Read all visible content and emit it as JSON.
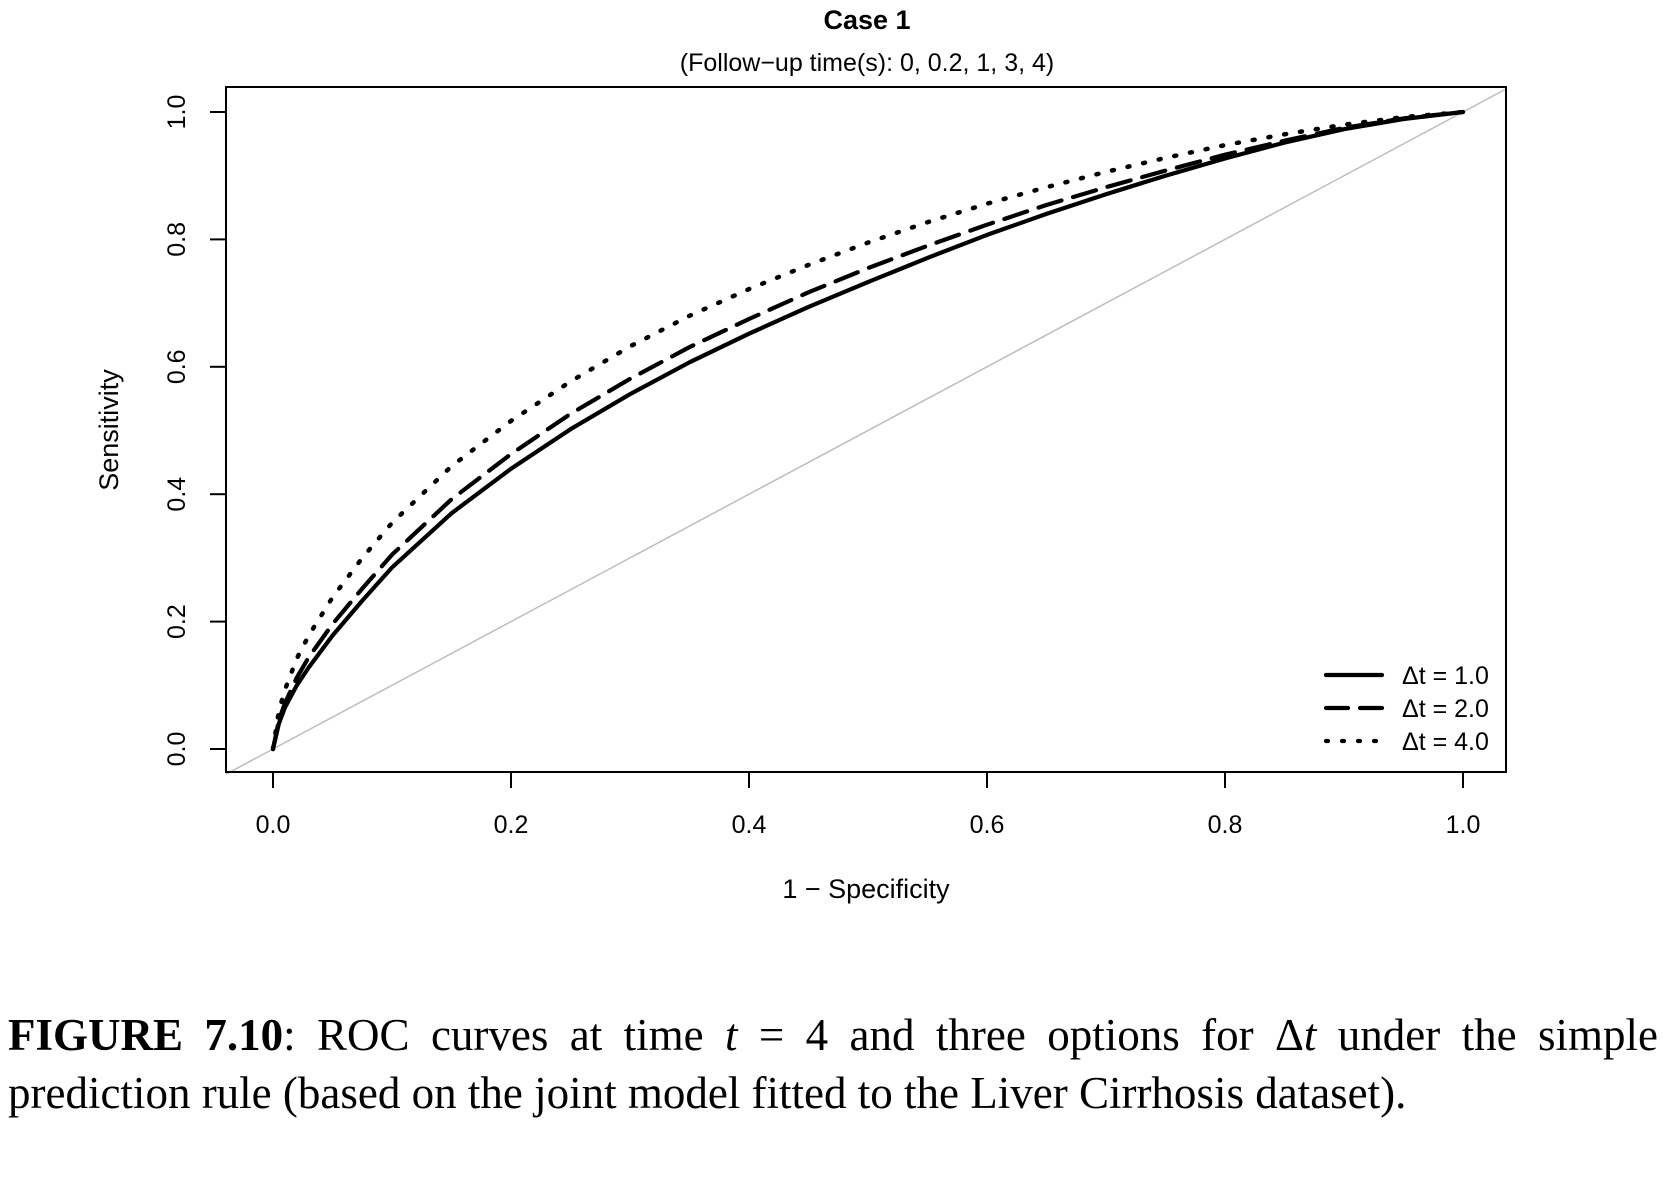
{
  "chart_data": {
    "type": "line",
    "title": "Case 1",
    "subtitle": "(Follow−up time(s): 0, 0.2, 1, 3, 4)",
    "xlabel": "1 − Specificity",
    "ylabel": "Sensitivity",
    "xlim": [
      0,
      1
    ],
    "ylim": [
      0,
      1
    ],
    "xticks": [
      "0.0",
      "0.2",
      "0.4",
      "0.6",
      "0.8",
      "1.0"
    ],
    "yticks": [
      "0.0",
      "0.2",
      "0.4",
      "0.6",
      "0.8",
      "1.0"
    ],
    "grid": false,
    "legend_position": "bottom-right",
    "reference_line": {
      "x": [
        0,
        1
      ],
      "y": [
        0,
        1
      ],
      "color": "#bdbdbd"
    },
    "x": [
      0,
      0.005,
      0.01,
      0.02,
      0.03,
      0.05,
      0.075,
      0.1,
      0.15,
      0.2,
      0.25,
      0.3,
      0.35,
      0.4,
      0.45,
      0.5,
      0.55,
      0.6,
      0.65,
      0.7,
      0.75,
      0.8,
      0.85,
      0.9,
      0.95,
      1.0
    ],
    "series": [
      {
        "name": "Δt = 1.0",
        "style": "solid",
        "color": "#000000",
        "values": [
          0,
          0.04,
          0.065,
          0.1,
          0.128,
          0.178,
          0.233,
          0.285,
          0.37,
          0.44,
          0.502,
          0.557,
          0.607,
          0.652,
          0.694,
          0.733,
          0.771,
          0.807,
          0.84,
          0.871,
          0.9,
          0.927,
          0.952,
          0.973,
          0.989,
          1.0
        ]
      },
      {
        "name": "Δt = 2.0",
        "style": "dashed",
        "color": "#000000",
        "values": [
          0,
          0.045,
          0.072,
          0.112,
          0.144,
          0.196,
          0.252,
          0.305,
          0.392,
          0.463,
          0.526,
          0.581,
          0.631,
          0.675,
          0.717,
          0.755,
          0.79,
          0.823,
          0.854,
          0.882,
          0.908,
          0.933,
          0.955,
          0.975,
          0.99,
          1.0
        ]
      },
      {
        "name": "Δt = 4.0",
        "style": "dotted",
        "color": "#000000",
        "values": [
          0,
          0.06,
          0.093,
          0.142,
          0.178,
          0.238,
          0.3,
          0.355,
          0.444,
          0.515,
          0.577,
          0.632,
          0.68,
          0.722,
          0.76,
          0.795,
          0.827,
          0.856,
          0.882,
          0.906,
          0.928,
          0.948,
          0.965,
          0.98,
          0.992,
          1.0
        ]
      }
    ]
  },
  "caption": {
    "label": "FIGURE 7.10",
    "text_1": ": ROC curves at time ",
    "math_1": "t",
    "text_2": " = 4 and three options for Δ",
    "math_2": "t",
    "text_3": " under the simple prediction rule (based on the joint model fitted to the Liver Cirrhosis dataset)."
  }
}
